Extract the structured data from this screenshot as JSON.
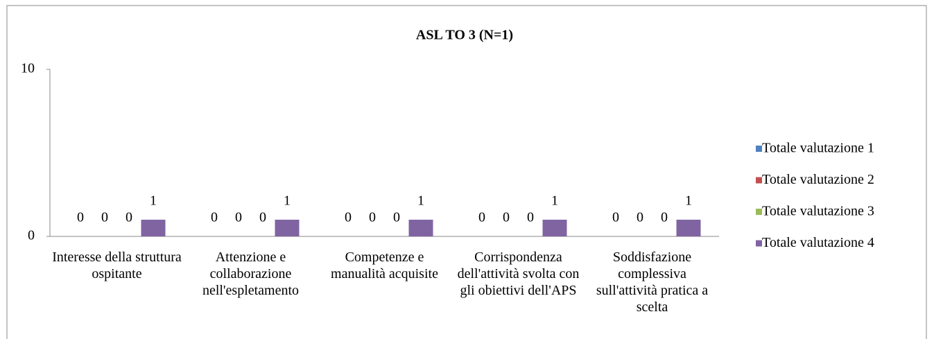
{
  "chart_data": {
    "type": "bar",
    "title": "ASL TO 3 (N=1)",
    "categories": [
      "Interesse della struttura ospitante",
      "Attenzione e collaborazione nell'espletamento",
      "Competenze e manualità acquisite",
      "Corrispondenza dell'attività svolta con gli obiettivi dell'APS",
      "Soddisfazione complessiva sull'attività pratica a scelta"
    ],
    "series": [
      {
        "name": "Totale valutazione 1",
        "color": "#4f81bd",
        "values": [
          0,
          0,
          0,
          0,
          0
        ]
      },
      {
        "name": "Totale valutazione 2",
        "color": "#c0504d",
        "values": [
          0,
          0,
          0,
          0,
          0
        ]
      },
      {
        "name": "Totale valutazione 3",
        "color": "#9bbb59",
        "values": [
          0,
          0,
          0,
          0,
          0
        ]
      },
      {
        "name": "Totale valutazione 4",
        "color": "#8064a2",
        "values": [
          1,
          1,
          1,
          1,
          1
        ]
      }
    ],
    "ylim": [
      0,
      10
    ],
    "yticks": [
      0,
      10
    ],
    "grid": false,
    "legend": "right"
  }
}
